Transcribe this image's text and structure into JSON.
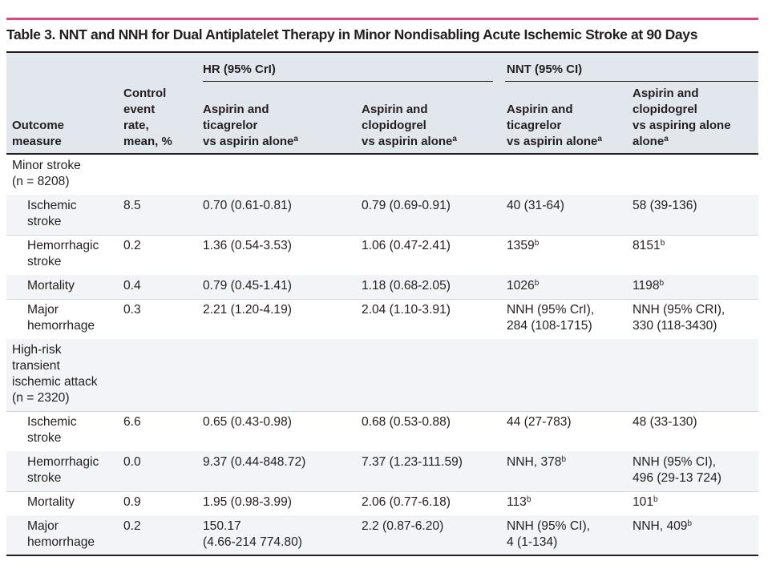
{
  "title": "Table 3. NNT and NNH for Dual Antiplatelet Therapy in Minor Nondisabling Acute Ischemic Stroke at 90 Days",
  "header": {
    "group_hr": "HR (95% CrI)",
    "group_nnt": "NNT (95% CI)",
    "col_outcome": [
      "Outcome",
      "measure"
    ],
    "col_control": [
      "Control",
      "event",
      "rate,",
      "mean, %"
    ],
    "col_hr_ticag": [
      "Aspirin and",
      "ticagrelor",
      "vs aspirin alone"
    ],
    "col_hr_clop": [
      "Aspirin and",
      "clopidogrel",
      "vs aspirin alone"
    ],
    "col_nnt_ticag": [
      "Aspirin and",
      "ticagrelor",
      "vs aspirin alone"
    ],
    "col_nnt_clop": [
      "Aspirin and",
      "clopidogrel",
      "vs aspiring alone",
      "alone"
    ],
    "sup_a": "a"
  },
  "sections": [
    {
      "label": [
        "Minor stroke",
        "(n = 8208)"
      ],
      "rows": [
        {
          "outcome": [
            "Ischemic",
            "stroke"
          ],
          "rate": "8.5",
          "hr_t": [
            "0.70 (0.61-0.81)"
          ],
          "hr_c": [
            "0.79 (0.69-0.91)"
          ],
          "nnt_t": [
            "40 (31-64)"
          ],
          "nnt_t_sup": "",
          "nnt_c": [
            "58 (39-136)"
          ],
          "nnt_c_sup": ""
        },
        {
          "outcome": [
            "Hemorrhagic",
            "stroke"
          ],
          "rate": "0.2",
          "hr_t": [
            "1.36 (0.54-3.53)"
          ],
          "hr_c": [
            "1.06 (0.47-2.41)"
          ],
          "nnt_t": [
            "1359"
          ],
          "nnt_t_sup": "b",
          "nnt_c": [
            "8151"
          ],
          "nnt_c_sup": "b"
        },
        {
          "outcome": [
            "Mortality"
          ],
          "rate": "0.4",
          "hr_t": [
            "0.79 (0.45-1.41)"
          ],
          "hr_c": [
            "1.18 (0.68-2.05)"
          ],
          "nnt_t": [
            "1026"
          ],
          "nnt_t_sup": "b",
          "nnt_c": [
            "1198"
          ],
          "nnt_c_sup": "b"
        },
        {
          "outcome": [
            "Major",
            "hemorrhage"
          ],
          "rate": "0.3",
          "hr_t": [
            "2.21 (1.20-4.19)"
          ],
          "hr_c": [
            "2.04 (1.10-3.91)"
          ],
          "nnt_t": [
            "NNH (95% CrI),",
            "284 (108-1715)"
          ],
          "nnt_t_sup": "",
          "nnt_c": [
            "NNH (95% CRI),",
            "330 (118-3430)"
          ],
          "nnt_c_sup": ""
        }
      ]
    },
    {
      "label": [
        "High-risk",
        "transient",
        "ischemic attack",
        "(n = 2320)"
      ],
      "rows": [
        {
          "outcome": [
            "Ischemic",
            "stroke"
          ],
          "rate": "6.6",
          "hr_t": [
            "0.65 (0.43-0.98)"
          ],
          "hr_c": [
            "0.68 (0.53-0.88)"
          ],
          "nnt_t": [
            "44 (27-783)"
          ],
          "nnt_t_sup": "",
          "nnt_c": [
            "48 (33-130)"
          ],
          "nnt_c_sup": ""
        },
        {
          "outcome": [
            "Hemorrhagic",
            "stroke"
          ],
          "rate": "0.0",
          "hr_t": [
            "9.37 (0.44-848.72)"
          ],
          "hr_c": [
            "7.37 (1.23-111.59)"
          ],
          "nnt_t": [
            "NNH, 378"
          ],
          "nnt_t_sup": "b",
          "nnt_c": [
            "NNH (95% CI),",
            "496 (29-13 724)"
          ],
          "nnt_c_sup": ""
        },
        {
          "outcome": [
            "Mortality"
          ],
          "rate": "0.9",
          "hr_t": [
            "1.95 (0.98-3.99)"
          ],
          "hr_c": [
            "2.06 (0.77-6.18)"
          ],
          "nnt_t": [
            "113"
          ],
          "nnt_t_sup": "b",
          "nnt_c": [
            "101"
          ],
          "nnt_c_sup": "b"
        },
        {
          "outcome": [
            "Major",
            "hemorrhage"
          ],
          "rate": "0.2",
          "hr_t": [
            "150.17",
            "(4.66-214 774.80)"
          ],
          "hr_c": [
            "2.2 (0.87-6.20)"
          ],
          "nnt_t": [
            "NNH (95% CI),",
            "4 (1-134)"
          ],
          "nnt_t_sup": "",
          "nnt_c": [
            "NNH, 409"
          ],
          "nnt_c_sup": "b"
        }
      ]
    }
  ]
}
